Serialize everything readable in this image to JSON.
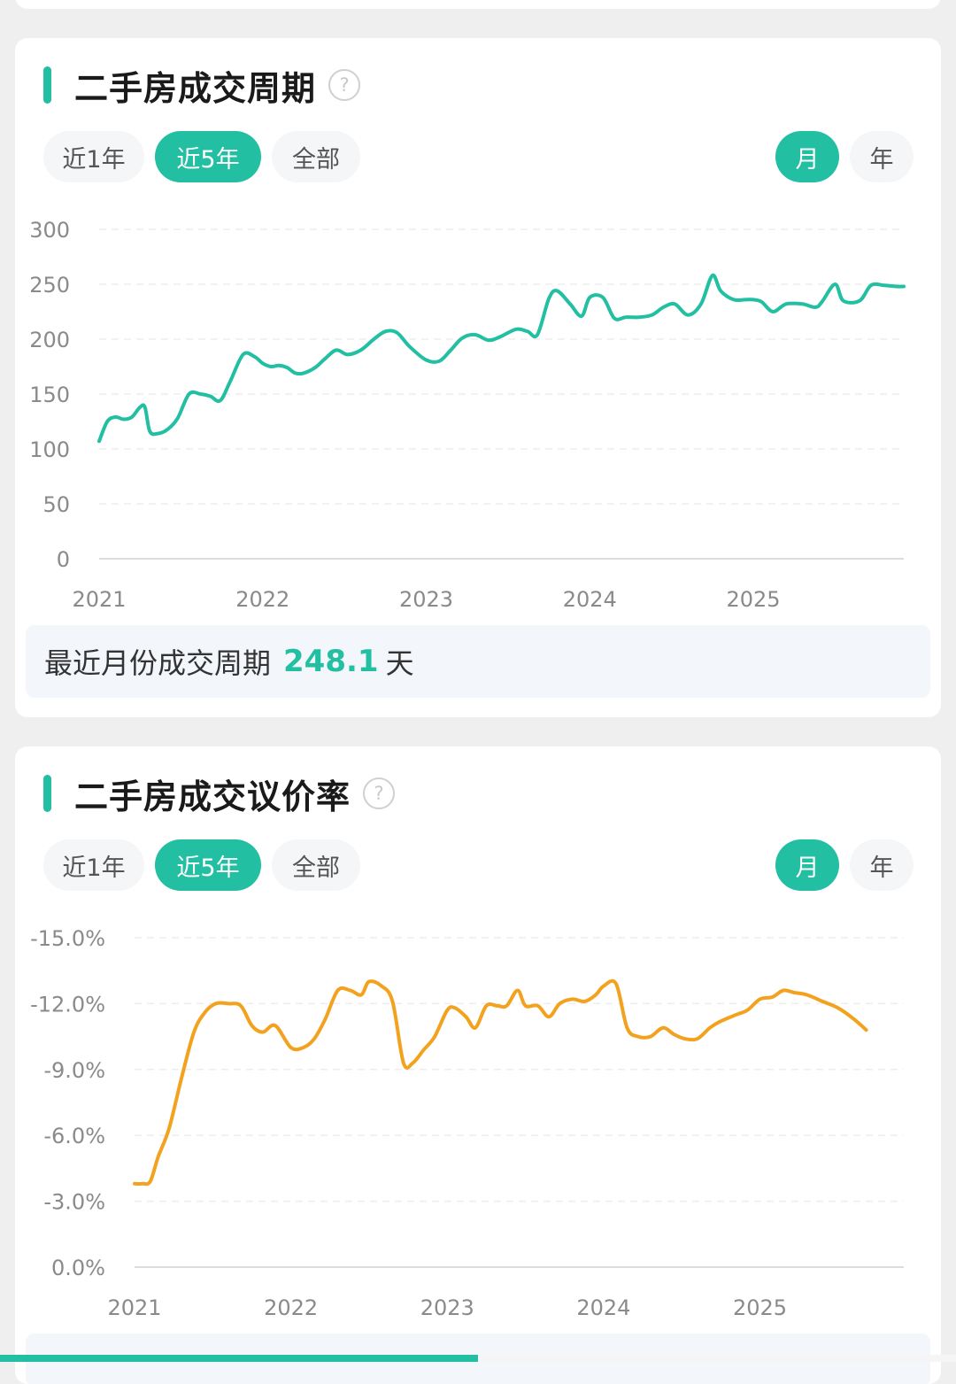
{
  "colors": {
    "accent": "#22bfa2",
    "series_orange": "#f2a21e",
    "background": "#efefef"
  },
  "cards": [
    {
      "title": "二手房成交周期",
      "range_tabs": [
        "近1年",
        "近5年",
        "全部"
      ],
      "active_range": "近5年",
      "period_tabs": [
        "月",
        "年"
      ],
      "active_period": "月",
      "summary_label": "最近月份成交周期",
      "summary_value": "248.1",
      "summary_unit": "天"
    },
    {
      "title": "二手房成交议价率",
      "range_tabs": [
        "近1年",
        "近5年",
        "全部"
      ],
      "active_range": "近5年",
      "period_tabs": [
        "月",
        "年"
      ],
      "active_period": "月"
    }
  ],
  "progress": 0.5,
  "chart_data": [
    {
      "type": "line",
      "x_ticks": [
        "2021",
        "2022",
        "2023",
        "2024",
        "2025"
      ],
      "y_ticks": [
        "300",
        "250",
        "200",
        "150",
        "100",
        "50",
        "0"
      ],
      "ylim": [
        0,
        300
      ],
      "xlim": [
        2021,
        2025.92
      ],
      "grid": true,
      "series": [
        {
          "color": "#22bfa2",
          "points": [
            [
              2021.0,
              107
            ],
            [
              2021.05,
              125
            ],
            [
              2021.1,
              129
            ],
            [
              2021.15,
              127
            ],
            [
              2021.2,
              129
            ],
            [
              2021.25,
              138
            ],
            [
              2021.28,
              138
            ],
            [
              2021.31,
              116
            ],
            [
              2021.36,
              114
            ],
            [
              2021.42,
              118
            ],
            [
              2021.48,
              128
            ],
            [
              2021.55,
              150
            ],
            [
              2021.62,
              150
            ],
            [
              2021.68,
              148
            ],
            [
              2021.74,
              144
            ],
            [
              2021.8,
              161
            ],
            [
              2021.88,
              186
            ],
            [
              2021.95,
              184
            ],
            [
              2022.0,
              178
            ],
            [
              2022.05,
              175
            ],
            [
              2022.1,
              176
            ],
            [
              2022.15,
              174
            ],
            [
              2022.2,
              169
            ],
            [
              2022.25,
              169
            ],
            [
              2022.32,
              174
            ],
            [
              2022.38,
              182
            ],
            [
              2022.45,
              190
            ],
            [
              2022.52,
              186
            ],
            [
              2022.6,
              190
            ],
            [
              2022.68,
              200
            ],
            [
              2022.75,
              207
            ],
            [
              2022.82,
              206
            ],
            [
              2022.9,
              193
            ],
            [
              2023.0,
              181
            ],
            [
              2023.08,
              180
            ],
            [
              2023.15,
              190
            ],
            [
              2023.22,
              201
            ],
            [
              2023.3,
              204
            ],
            [
              2023.38,
              199
            ],
            [
              2023.45,
              202
            ],
            [
              2023.55,
              209
            ],
            [
              2023.62,
              207
            ],
            [
              2023.68,
              204
            ],
            [
              2023.75,
              237
            ],
            [
              2023.8,
              244
            ],
            [
              2023.88,
              232
            ],
            [
              2023.95,
              221
            ],
            [
              2024.0,
              238
            ],
            [
              2024.08,
              238
            ],
            [
              2024.15,
              219
            ],
            [
              2024.22,
              220
            ],
            [
              2024.3,
              220
            ],
            [
              2024.38,
              222
            ],
            [
              2024.45,
              229
            ],
            [
              2024.52,
              232
            ],
            [
              2024.6,
              222
            ],
            [
              2024.68,
              232
            ],
            [
              2024.75,
              258
            ],
            [
              2024.8,
              244
            ],
            [
              2024.88,
              236
            ],
            [
              2024.95,
              236
            ],
            [
              2025.0,
              236
            ],
            [
              2025.05,
              234
            ],
            [
              2025.12,
              225
            ],
            [
              2025.2,
              232
            ],
            [
              2025.3,
              232
            ],
            [
              2025.38,
              229
            ],
            [
              2025.42,
              234
            ],
            [
              2025.5,
              250
            ],
            [
              2025.55,
              235
            ],
            [
              2025.65,
              235
            ],
            [
              2025.72,
              249
            ],
            [
              2025.8,
              249
            ],
            [
              2025.88,
              248
            ],
            [
              2025.92,
              248
            ]
          ]
        }
      ]
    },
    {
      "type": "line",
      "x_ticks": [
        "2021",
        "2022",
        "2023",
        "2024",
        "2025"
      ],
      "y_ticks": [
        "-15.0%",
        "-12.0%",
        "-9.0%",
        "-6.0%",
        "-3.0%",
        "0.0%"
      ],
      "ylim": [
        0,
        -15
      ],
      "xlim": [
        2021,
        2025.92
      ],
      "grid": true,
      "series": [
        {
          "color": "#f2a21e",
          "points": [
            [
              2021.0,
              -3.8
            ],
            [
              2021.05,
              -3.8
            ],
            [
              2021.1,
              -3.9
            ],
            [
              2021.15,
              -5.0
            ],
            [
              2021.22,
              -6.3
            ],
            [
              2021.3,
              -8.6
            ],
            [
              2021.38,
              -10.7
            ],
            [
              2021.45,
              -11.6
            ],
            [
              2021.52,
              -12.0
            ],
            [
              2021.6,
              -12.0
            ],
            [
              2021.68,
              -11.9
            ],
            [
              2021.75,
              -11.0
            ],
            [
              2021.82,
              -10.7
            ],
            [
              2021.9,
              -11.0
            ],
            [
              2022.0,
              -10.0
            ],
            [
              2022.08,
              -10.0
            ],
            [
              2022.15,
              -10.4
            ],
            [
              2022.22,
              -11.3
            ],
            [
              2022.3,
              -12.6
            ],
            [
              2022.38,
              -12.6
            ],
            [
              2022.45,
              -12.4
            ],
            [
              2022.5,
              -13.0
            ],
            [
              2022.58,
              -12.8
            ],
            [
              2022.65,
              -12.1
            ],
            [
              2022.72,
              -9.3
            ],
            [
              2022.78,
              -9.3
            ],
            [
              2022.85,
              -9.9
            ],
            [
              2022.92,
              -10.5
            ],
            [
              2023.0,
              -11.7
            ],
            [
              2023.05,
              -11.8
            ],
            [
              2023.12,
              -11.4
            ],
            [
              2023.18,
              -10.9
            ],
            [
              2023.25,
              -11.9
            ],
            [
              2023.32,
              -11.9
            ],
            [
              2023.38,
              -11.9
            ],
            [
              2023.45,
              -12.6
            ],
            [
              2023.5,
              -11.9
            ],
            [
              2023.58,
              -11.9
            ],
            [
              2023.65,
              -11.4
            ],
            [
              2023.72,
              -12.0
            ],
            [
              2023.8,
              -12.2
            ],
            [
              2023.88,
              -12.1
            ],
            [
              2023.95,
              -12.4
            ],
            [
              2024.0,
              -12.8
            ],
            [
              2024.08,
              -12.9
            ],
            [
              2024.15,
              -10.9
            ],
            [
              2024.22,
              -10.5
            ],
            [
              2024.3,
              -10.5
            ],
            [
              2024.38,
              -10.9
            ],
            [
              2024.45,
              -10.6
            ],
            [
              2024.52,
              -10.4
            ],
            [
              2024.6,
              -10.4
            ],
            [
              2024.68,
              -10.9
            ],
            [
              2024.75,
              -11.2
            ],
            [
              2024.85,
              -11.5
            ],
            [
              2024.92,
              -11.7
            ],
            [
              2025.0,
              -12.2
            ],
            [
              2025.08,
              -12.3
            ],
            [
              2025.15,
              -12.6
            ],
            [
              2025.22,
              -12.5
            ],
            [
              2025.3,
              -12.4
            ],
            [
              2025.4,
              -12.1
            ],
            [
              2025.5,
              -11.8
            ],
            [
              2025.6,
              -11.3
            ],
            [
              2025.68,
              -10.8
            ]
          ]
        }
      ]
    }
  ]
}
